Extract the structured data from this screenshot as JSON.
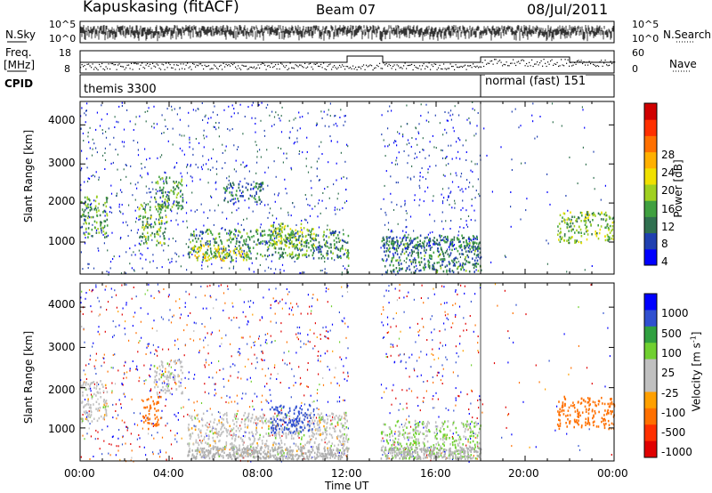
{
  "header": {
    "station": "Kapuskasing (fitACF)",
    "beam": "Beam 07",
    "date": "08/Jul/2011"
  },
  "top_panels": {
    "nsky_label": "N.Sky",
    "nsky_ticks": [
      "10^5",
      "10^0"
    ],
    "nsearch_label": "N.Search",
    "nsearch_ticks": [
      "10^5",
      "10^0"
    ],
    "freq_label_1": "Freq.",
    "freq_label_2": "[MHz]",
    "freq_ticks": [
      "18",
      "8"
    ],
    "nave_label": "Nave",
    "nave_ticks": [
      "60",
      "0"
    ],
    "cpid_label": "CPID",
    "cpid_modes": [
      {
        "text": "themis 3300",
        "start_hour": 0
      },
      {
        "text": "normal (fast) 151",
        "start_hour": 18
      }
    ]
  },
  "power_panel": {
    "ylabel": "Slant Range [km]",
    "yticks": [
      "4000",
      "3000",
      "2000",
      "1000"
    ],
    "cbar_label": "Power [dB]",
    "cbar_ticks": [
      "28",
      "24",
      "20",
      "16",
      "12",
      "8",
      "4"
    ],
    "cbar_colors": [
      "#0000ff",
      "#2040b0",
      "#307050",
      "#40a040",
      "#a0d020",
      "#f0e000",
      "#ffb000",
      "#ff7000",
      "#ff3000",
      "#d00000"
    ]
  },
  "velocity_panel": {
    "ylabel": "Slant Range [km]",
    "yticks": [
      "4000",
      "3000",
      "2000",
      "1000"
    ],
    "cbar_label": "Velocity [m s",
    "cbar_label_sup": "-1",
    "cbar_label_end": "]",
    "cbar_ticks": [
      "1000",
      "500",
      "100",
      "25",
      "-25",
      "-100",
      "-500",
      "-1000"
    ],
    "cbar_colors": [
      "#0000ff",
      "#3050d0",
      "#30a040",
      "#70d030",
      "#c0c0c0",
      "#c0c0c0",
      "#ffa000",
      "#ff7000",
      "#ff3000",
      "#e00000"
    ]
  },
  "x_axis": {
    "ticks": [
      "00:00",
      "04:00",
      "08:00",
      "12:00",
      "16:00",
      "20:00",
      "00:00"
    ],
    "label": "Time UT"
  },
  "chart_data": {
    "type": "heatmap",
    "title": "Kapuskasing (fitACF)",
    "xlabel": "Time UT",
    "ylabel": "Slant Range [km]",
    "xlim_hours": [
      0,
      24
    ],
    "ylim_km": [
      180,
      4600
    ],
    "mode_change_hour": 18,
    "data_gap_hours": [
      12.05,
      13.5
    ],
    "power_regions": [
      {
        "t0": 0.0,
        "t1": 1.2,
        "r0": 1150,
        "r1": 2200,
        "level": 10
      },
      {
        "t0": 2.6,
        "t1": 3.9,
        "r0": 950,
        "r1": 2000,
        "level": 11
      },
      {
        "t0": 3.3,
        "t1": 4.6,
        "r0": 1850,
        "r1": 2700,
        "level": 10
      },
      {
        "t0": 4.8,
        "t1": 12.0,
        "r0": 600,
        "r1": 1350,
        "level": 9
      },
      {
        "t0": 5.0,
        "t1": 7.5,
        "r0": 550,
        "r1": 950,
        "level": 16
      },
      {
        "t0": 8.5,
        "t1": 10.5,
        "r0": 900,
        "r1": 1500,
        "level": 13
      },
      {
        "t0": 6.4,
        "t1": 8.2,
        "r0": 2050,
        "r1": 2550,
        "level": 7
      },
      {
        "t0": 12.0,
        "t1": 18.0,
        "r0": 250,
        "r1": 1200,
        "level": 8
      },
      {
        "t0": 13.5,
        "t1": 17.9,
        "r0": 850,
        "r1": 1150,
        "level": 7
      },
      {
        "t0": 21.4,
        "t1": 24.0,
        "r0": 1000,
        "r1": 1800,
        "level": 12
      }
    ],
    "velocity_regions": [
      {
        "t0": 0.0,
        "t1": 1.2,
        "r0": 1150,
        "r1": 2200,
        "velocity": 0
      },
      {
        "t0": 2.8,
        "t1": 3.6,
        "r0": 1000,
        "r1": 1800,
        "velocity": -300
      },
      {
        "t0": 3.3,
        "t1": 4.6,
        "r0": 1850,
        "r1": 2700,
        "velocity": 0
      },
      {
        "t0": 4.8,
        "t1": 12.0,
        "r0": 300,
        "r1": 1400,
        "velocity": 0
      },
      {
        "t0": 8.5,
        "t1": 10.5,
        "r0": 900,
        "r1": 1600,
        "velocity": 150
      },
      {
        "t0": 12.0,
        "t1": 18.0,
        "r0": 250,
        "r1": 1200,
        "velocity": 30
      },
      {
        "t0": 21.4,
        "t1": 24.0,
        "r0": 1000,
        "r1": 1800,
        "velocity": -250
      }
    ]
  }
}
